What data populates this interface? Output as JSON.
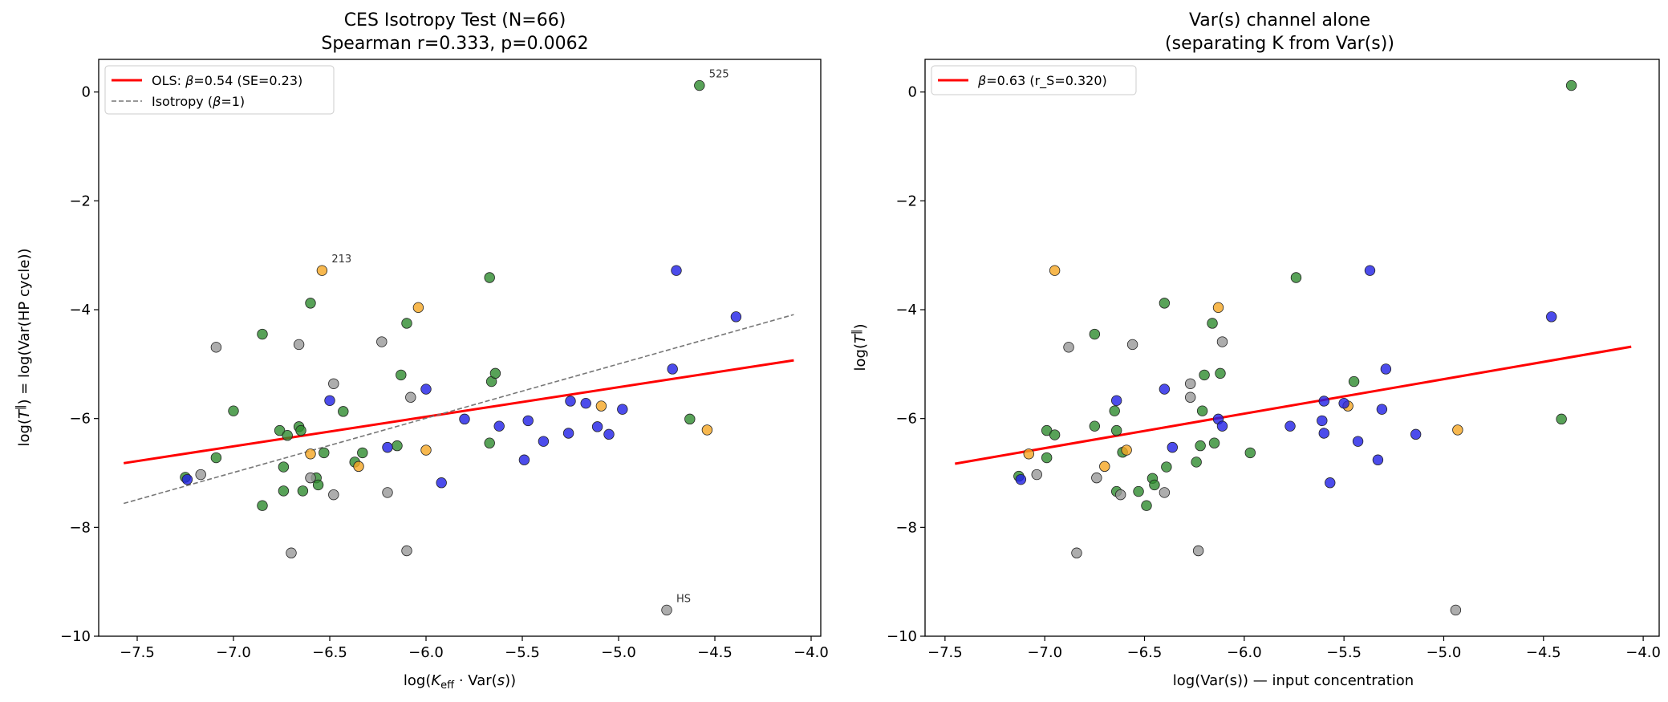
{
  "chart_data": [
    {
      "type": "scatter",
      "title_lines": [
        "CES Isotropy Test (N=66)",
        "Spearman r=0.333, p=0.0062"
      ],
      "xlabel": "log(K_eff · Var(s))",
      "ylabel": "log(T^‖) = log(Var(HP cycle))",
      "xlim": [
        -7.7,
        -3.95
      ],
      "ylim": [
        -10,
        0.6
      ],
      "xticks": [
        -7.5,
        -7.0,
        -6.5,
        -6.0,
        -5.5,
        -5.0,
        -4.5,
        -4.0
      ],
      "xtick_labels": [
        "−7.5",
        "−7.0",
        "−6.5",
        "−6.0",
        "−5.5",
        "−5.0",
        "−4.5",
        "−4.0"
      ],
      "yticks": [
        0,
        -2,
        -4,
        -6,
        -8,
        -10
      ],
      "ytick_labels": [
        "0",
        "−2",
        "−4",
        "−6",
        "−8",
        "−10"
      ],
      "legend_position": "upper-left",
      "lines": [
        {
          "name": "OLS fit",
          "label_prefix": "OLS: ",
          "label_symbol": "β",
          "label_suffix": "=0.54 (SE=0.23)",
          "color": "#ff0000",
          "style": "solid",
          "x": [
            -7.57,
            -4.09
          ],
          "y": [
            -6.82,
            -4.93
          ]
        },
        {
          "name": "Isotropy",
          "label_prefix": "Isotropy (",
          "label_symbol": "β",
          "label_suffix": "=1)",
          "color": "#777777",
          "style": "dashed",
          "x": [
            -7.57,
            -4.09
          ],
          "y": [
            -7.56,
            -4.09
          ]
        }
      ],
      "annotations": [
        {
          "text": "525",
          "x": -4.58,
          "y": 0.12
        },
        {
          "text": "213",
          "x": -6.54,
          "y": -3.28
        },
        {
          "text": "HS",
          "x": -4.75,
          "y": -9.52
        }
      ],
      "series": [
        {
          "name": "green",
          "color": "#2e8b2e",
          "points": [
            [
              -7.25,
              -7.08
            ],
            [
              -7.09,
              -6.72
            ],
            [
              -7.0,
              -5.86
            ],
            [
              -6.85,
              -4.45
            ],
            [
              -6.85,
              -7.6
            ],
            [
              -6.76,
              -6.22
            ],
            [
              -6.74,
              -6.89
            ],
            [
              -6.74,
              -7.33
            ],
            [
              -6.72,
              -6.31
            ],
            [
              -6.66,
              -6.15
            ],
            [
              -6.65,
              -6.22
            ],
            [
              -6.64,
              -7.33
            ],
            [
              -6.6,
              -3.88
            ],
            [
              -6.57,
              -7.09
            ],
            [
              -6.56,
              -7.22
            ],
            [
              -6.53,
              -6.63
            ],
            [
              -6.43,
              -5.87
            ],
            [
              -6.37,
              -6.8
            ],
            [
              -6.33,
              -6.63
            ],
            [
              -6.15,
              -6.5
            ],
            [
              -6.13,
              -5.2
            ],
            [
              -6.1,
              -4.25
            ],
            [
              -5.67,
              -3.41
            ],
            [
              -5.67,
              -6.45
            ],
            [
              -5.66,
              -5.32
            ],
            [
              -5.64,
              -5.17
            ],
            [
              -4.63,
              -6.01
            ],
            [
              -4.58,
              0.12
            ]
          ]
        },
        {
          "name": "gray",
          "color": "#999999",
          "points": [
            [
              -7.17,
              -7.03
            ],
            [
              -7.09,
              -4.69
            ],
            [
              -6.7,
              -8.47
            ],
            [
              -6.66,
              -4.64
            ],
            [
              -6.6,
              -7.09
            ],
            [
              -6.48,
              -5.36
            ],
            [
              -6.48,
              -7.4
            ],
            [
              -6.23,
              -4.59
            ],
            [
              -6.2,
              -7.36
            ],
            [
              -6.1,
              -8.43
            ],
            [
              -6.08,
              -5.61
            ],
            [
              -4.75,
              -9.52
            ]
          ]
        },
        {
          "name": "orange",
          "color": "#f5a623",
          "points": [
            [
              -6.6,
              -6.65
            ],
            [
              -6.54,
              -3.28
            ],
            [
              -6.35,
              -6.88
            ],
            [
              -6.04,
              -3.96
            ],
            [
              -6.0,
              -6.58
            ],
            [
              -5.09,
              -5.77
            ],
            [
              -4.54,
              -6.21
            ]
          ]
        },
        {
          "name": "blue",
          "color": "#1f1fe6",
          "points": [
            [
              -7.24,
              -7.12
            ],
            [
              -6.5,
              -5.67
            ],
            [
              -6.2,
              -6.53
            ],
            [
              -6.0,
              -5.46
            ],
            [
              -5.92,
              -7.18
            ],
            [
              -5.8,
              -6.01
            ],
            [
              -5.62,
              -6.14
            ],
            [
              -5.49,
              -6.76
            ],
            [
              -5.47,
              -6.04
            ],
            [
              -5.39,
              -6.42
            ],
            [
              -5.26,
              -6.27
            ],
            [
              -5.25,
              -5.68
            ],
            [
              -5.17,
              -5.72
            ],
            [
              -5.11,
              -6.15
            ],
            [
              -5.05,
              -6.29
            ],
            [
              -4.98,
              -5.83
            ],
            [
              -4.72,
              -5.09
            ],
            [
              -4.7,
              -3.28
            ],
            [
              -4.39,
              -4.13
            ]
          ]
        }
      ]
    },
    {
      "type": "scatter",
      "title_lines": [
        "Var(s) channel alone",
        "(separating K from Var(s))"
      ],
      "xlabel": "log(Var(s)) — input concentration",
      "ylabel": "log(T^‖)",
      "xlim": [
        -7.6,
        -3.92
      ],
      "ylim": [
        -10,
        0.6
      ],
      "xticks": [
        -7.5,
        -7.0,
        -6.5,
        -6.0,
        -5.5,
        -5.0,
        -4.5,
        -4.0
      ],
      "xtick_labels": [
        "−7.5",
        "−7.0",
        "−6.5",
        "−6.0",
        "−5.5",
        "−5.0",
        "−4.5",
        "−4.0"
      ],
      "yticks": [
        0,
        -2,
        -4,
        -6,
        -8,
        -10
      ],
      "ytick_labels": [
        "0",
        "−2",
        "−4",
        "−6",
        "−8",
        "−10"
      ],
      "legend_position": "upper-left",
      "lines": [
        {
          "name": "Fit",
          "label_prefix": "",
          "label_symbol": "β",
          "label_suffix": "=0.63 (r_S=0.320)",
          "color": "#ff0000",
          "style": "solid",
          "x": [
            -7.45,
            -4.06
          ],
          "y": [
            -6.83,
            -4.68
          ]
        }
      ],
      "annotations": [],
      "series": [
        {
          "name": "green",
          "color": "#2e8b2e",
          "points": [
            [
              -7.13,
              -7.06
            ],
            [
              -6.99,
              -6.22
            ],
            [
              -6.99,
              -6.72
            ],
            [
              -6.95,
              -6.3
            ],
            [
              -6.75,
              -4.45
            ],
            [
              -6.75,
              -6.14
            ],
            [
              -6.65,
              -5.86
            ],
            [
              -6.64,
              -6.22
            ],
            [
              -6.64,
              -7.34
            ],
            [
              -6.61,
              -6.62
            ],
            [
              -6.53,
              -7.34
            ],
            [
              -6.49,
              -7.6
            ],
            [
              -6.46,
              -7.1
            ],
            [
              -6.45,
              -7.22
            ],
            [
              -6.4,
              -3.88
            ],
            [
              -6.39,
              -6.89
            ],
            [
              -6.24,
              -6.8
            ],
            [
              -6.22,
              -6.5
            ],
            [
              -6.21,
              -5.86
            ],
            [
              -6.2,
              -5.2
            ],
            [
              -6.16,
              -4.25
            ],
            [
              -6.15,
              -6.45
            ],
            [
              -6.12,
              -5.17
            ],
            [
              -5.97,
              -6.63
            ],
            [
              -5.74,
              -3.41
            ],
            [
              -5.45,
              -5.32
            ],
            [
              -4.41,
              -6.01
            ],
            [
              -4.36,
              0.12
            ]
          ]
        },
        {
          "name": "gray",
          "color": "#999999",
          "points": [
            [
              -7.04,
              -7.03
            ],
            [
              -6.88,
              -4.69
            ],
            [
              -6.84,
              -8.47
            ],
            [
              -6.74,
              -7.09
            ],
            [
              -6.62,
              -7.4
            ],
            [
              -6.56,
              -4.64
            ],
            [
              -6.4,
              -7.36
            ],
            [
              -6.27,
              -5.36
            ],
            [
              -6.27,
              -5.61
            ],
            [
              -6.23,
              -8.43
            ],
            [
              -6.11,
              -4.59
            ],
            [
              -4.94,
              -9.52
            ]
          ]
        },
        {
          "name": "orange",
          "color": "#f5a623",
          "points": [
            [
              -7.08,
              -6.65
            ],
            [
              -6.95,
              -3.28
            ],
            [
              -6.7,
              -6.88
            ],
            [
              -6.59,
              -6.58
            ],
            [
              -6.13,
              -3.96
            ],
            [
              -5.48,
              -5.77
            ],
            [
              -4.93,
              -6.21
            ]
          ]
        },
        {
          "name": "blue",
          "color": "#1f1fe6",
          "points": [
            [
              -7.12,
              -7.12
            ],
            [
              -6.64,
              -5.67
            ],
            [
              -6.4,
              -5.46
            ],
            [
              -6.36,
              -6.53
            ],
            [
              -6.13,
              -6.01
            ],
            [
              -6.11,
              -6.14
            ],
            [
              -5.77,
              -6.14
            ],
            [
              -5.61,
              -6.04
            ],
            [
              -5.6,
              -5.68
            ],
            [
              -5.6,
              -6.27
            ],
            [
              -5.57,
              -7.18
            ],
            [
              -5.5,
              -5.72
            ],
            [
              -5.43,
              -6.42
            ],
            [
              -5.37,
              -3.28
            ],
            [
              -5.33,
              -6.76
            ],
            [
              -5.31,
              -5.83
            ],
            [
              -5.29,
              -5.09
            ],
            [
              -5.14,
              -6.29
            ],
            [
              -4.46,
              -4.13
            ]
          ]
        }
      ]
    }
  ]
}
